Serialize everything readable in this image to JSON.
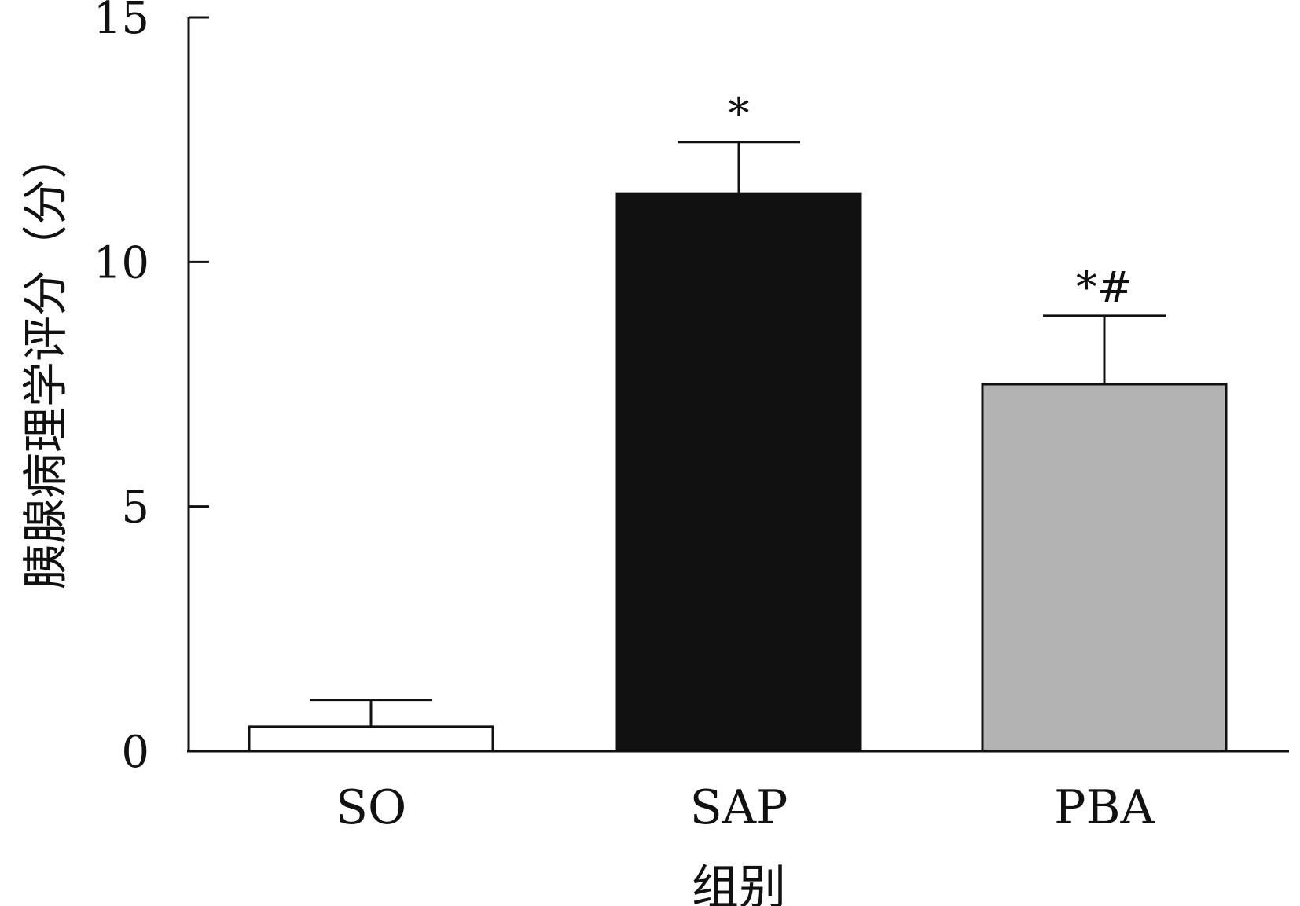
{
  "chart_data": {
    "type": "bar",
    "categories": [
      "SO",
      "SAP",
      "PBA"
    ],
    "values": [
      0.5,
      11.4,
      7.5
    ],
    "errors": [
      0.55,
      1.05,
      1.4
    ],
    "annotations": [
      "",
      "*",
      "*#"
    ],
    "xlabel": "组别",
    "ylabel": "胰腺病理学评分（分）",
    "ylim": [
      0,
      15
    ],
    "yticks": [
      0,
      5,
      10,
      15
    ],
    "grid": false,
    "bar_colors": [
      "#ffffff",
      "#111111",
      "#b3b3b3"
    ]
  }
}
